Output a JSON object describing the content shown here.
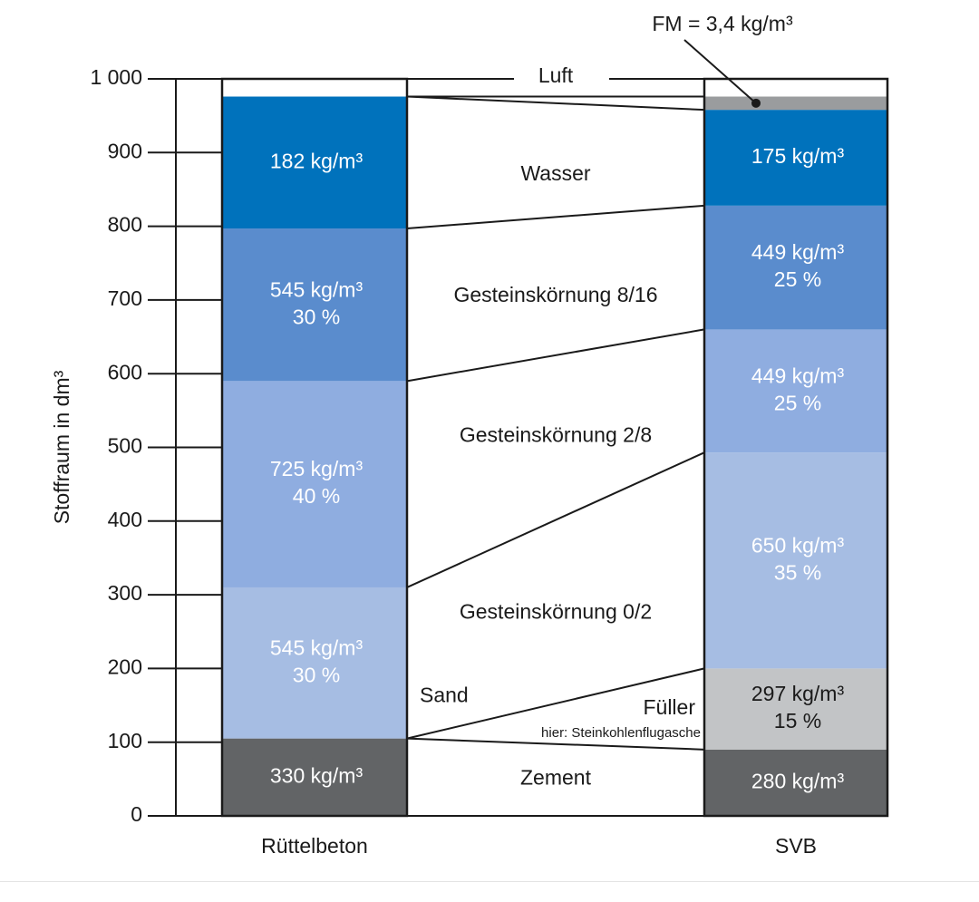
{
  "chart_data": {
    "type": "bar",
    "ylabel": "Stoffraum in dm³",
    "ylim": [
      0,
      1000
    ],
    "yticks": [
      {
        "value": 0,
        "label": "0"
      },
      {
        "value": 100,
        "label": "100"
      },
      {
        "value": 200,
        "label": "200"
      },
      {
        "value": 300,
        "label": "300"
      },
      {
        "value": 400,
        "label": "400"
      },
      {
        "value": 500,
        "label": "500"
      },
      {
        "value": 600,
        "label": "600"
      },
      {
        "value": 700,
        "label": "700"
      },
      {
        "value": 800,
        "label": "800"
      },
      {
        "value": 900,
        "label": "900"
      },
      {
        "value": 1000,
        "label": "1 000"
      }
    ],
    "categories": [
      "Rüttelbeton",
      "SVB"
    ],
    "components": [
      {
        "name": "Zement",
        "color": "#626466"
      },
      {
        "name": "Füller",
        "color": "#c2c4c6"
      },
      {
        "name": "Gesteinskörnung 0/2",
        "color": "#a6bde3"
      },
      {
        "name": "Gesteinskörnung 2/8",
        "color": "#8fade0"
      },
      {
        "name": "Gesteinskörnung 8/16",
        "color": "#5a8ccd"
      },
      {
        "name": "Wasser",
        "color": "#0072bc"
      },
      {
        "name": "FM",
        "color": "#9a9c9e"
      },
      {
        "name": "Luft",
        "color": "#ffffff"
      }
    ],
    "segments": [
      [
        {
          "component": "Zement",
          "from": 0,
          "to": 105,
          "label": [
            "330 kg/m³"
          ]
        },
        {
          "component": "Gesteinskörnung 0/2",
          "from": 105,
          "to": 310,
          "label": [
            "545 kg/m³",
            "30 %"
          ]
        },
        {
          "component": "Gesteinskörnung 2/8",
          "from": 310,
          "to": 590,
          "label": [
            "725 kg/m³",
            "40 %"
          ]
        },
        {
          "component": "Gesteinskörnung 8/16",
          "from": 590,
          "to": 797,
          "label": [
            "545 kg/m³",
            "30 %"
          ]
        },
        {
          "component": "Wasser",
          "from": 797,
          "to": 976,
          "label": [
            "182 kg/m³"
          ]
        },
        {
          "component": "Luft",
          "from": 976,
          "to": 1000,
          "label": []
        }
      ],
      [
        {
          "component": "Zement",
          "from": 0,
          "to": 90,
          "label": [
            "280 kg/m³"
          ]
        },
        {
          "component": "Füller",
          "from": 90,
          "to": 200,
          "label": [
            "297 kg/m³",
            "15 %"
          ]
        },
        {
          "component": "Gesteinskörnung 0/2",
          "from": 200,
          "to": 493,
          "label": [
            "650 kg/m³",
            "35 %"
          ]
        },
        {
          "component": "Gesteinskörnung 2/8",
          "from": 493,
          "to": 660,
          "label": [
            "449 kg/m³",
            "25 %"
          ]
        },
        {
          "component": "Gesteinskörnung 8/16",
          "from": 660,
          "to": 828,
          "label": [
            "449 kg/m³",
            "25 %"
          ]
        },
        {
          "component": "Wasser",
          "from": 828,
          "to": 958,
          "label": [
            "175 kg/m³"
          ]
        },
        {
          "component": "FM",
          "from": 958,
          "to": 976,
          "label": []
        },
        {
          "component": "Luft",
          "from": 976,
          "to": 1000,
          "label": []
        }
      ]
    ],
    "connectors": [
      {
        "left": 105,
        "right": 90
      },
      {
        "left": 105,
        "right": 200
      },
      {
        "left": 310,
        "right": 493
      },
      {
        "left": 590,
        "right": 660
      },
      {
        "left": 797,
        "right": 828
      },
      {
        "left": 976,
        "right": 958
      },
      {
        "left": 976,
        "right": 976
      }
    ],
    "middle_labels": [
      {
        "text": "Wasser",
        "value": 870,
        "pos": "center"
      },
      {
        "text": "Gesteinskörnung 8/16",
        "value": 705,
        "pos": "center"
      },
      {
        "text": "Gesteinskörnung 2/8",
        "value": 515,
        "pos": "center"
      },
      {
        "text": "Gesteinskörnung 0/2",
        "value": 275,
        "pos": "center"
      },
      {
        "text": "Sand",
        "value": 162,
        "pos": "left"
      },
      {
        "text": "Füller",
        "value": 145,
        "pos": "right"
      },
      {
        "text": "hier: Steinkohlenflugasche",
        "value": 112,
        "pos": "right-small"
      },
      {
        "text": "Zement",
        "value": 50,
        "pos": "center"
      },
      {
        "text": "Luft",
        "value": 1000,
        "pos": "top"
      }
    ],
    "annotation": {
      "text": "FM = 3,4 kg/m³",
      "target_value": 967
    }
  }
}
